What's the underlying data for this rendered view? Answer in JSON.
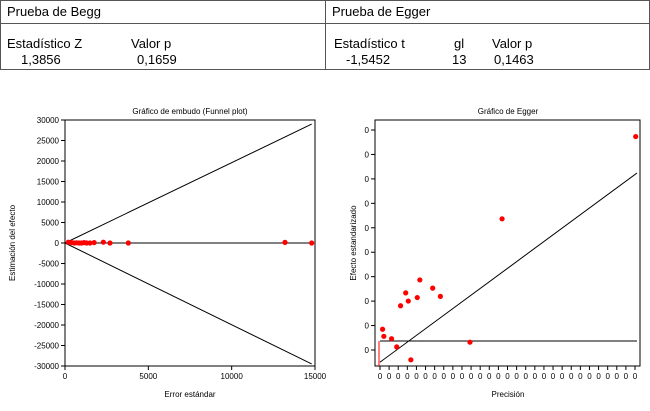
{
  "begg": {
    "title": "Prueba de Begg",
    "stat_label": "Estadístico Z",
    "p_label": "Valor p",
    "stat_value": "1,3856",
    "p_value": "0,1659"
  },
  "egger": {
    "title": "Prueba de Egger",
    "stat_label": "Estadístico t",
    "gl_label": "gl",
    "p_label": "Valor p",
    "stat_value": "-1,5452",
    "gl_value": "13",
    "p_value": "0,1463"
  },
  "chart_data": [
    {
      "type": "scatter",
      "title": "Gráfico de embudo (Funnel plot)",
      "xlabel": "Error estándar",
      "ylabel": "Estimación del efecto",
      "xlim": [
        0,
        15000
      ],
      "ylim": [
        -30000,
        30000
      ],
      "xticks": [
        0,
        5000,
        10000,
        15000
      ],
      "xtick_labels": [
        "0",
        "5000",
        "10000",
        "15000"
      ],
      "yticks": [
        30000,
        25000,
        20000,
        15000,
        10000,
        5000,
        0,
        -5000,
        -10000,
        -15000,
        -20000,
        -25000,
        -30000
      ],
      "ytick_labels": [
        "30000",
        "25000",
        "20000",
        "15000",
        "10000",
        "5000",
        "0",
        "-5000",
        "-10000",
        "-15000",
        "-20000",
        "-25000",
        "-30000"
      ],
      "points": {
        "x": [
          200,
          400,
          550,
          700,
          850,
          1000,
          1150,
          1300,
          1500,
          1750,
          2300,
          2700,
          3800,
          13200,
          14800
        ],
        "y": [
          200,
          100,
          0,
          50,
          0,
          0,
          100,
          0,
          0,
          100,
          200,
          0,
          0,
          150,
          0
        ]
      },
      "lines": [
        {
          "x": [
            0,
            14800
          ],
          "y": [
            0,
            29000
          ]
        },
        {
          "x": [
            0,
            14800
          ],
          "y": [
            0,
            -29500
          ]
        },
        {
          "x": [
            0,
            14800
          ],
          "y": [
            0,
            0
          ]
        }
      ],
      "point_color": "#ff0000"
    },
    {
      "type": "scatter",
      "title": "Gráfico de Egger",
      "xlabel": "Precisión",
      "ylabel": "Efecto estandarizado",
      "xlim": [
        0,
        10
      ],
      "ylim": [
        0,
        10
      ],
      "xtick_count": 29,
      "ytick_count": 10,
      "tick_label": "0",
      "points": {
        "x": [
          0.1,
          0.15,
          0.45,
          0.65,
          0.8,
          1.0,
          1.1,
          1.2,
          1.45,
          1.55,
          2.05,
          2.35,
          3.5,
          4.75,
          9.95
        ],
        "y": [
          1.35,
          1.05,
          0.95,
          0.6,
          2.35,
          2.9,
          2.55,
          0.05,
          2.7,
          3.45,
          3.1,
          2.75,
          0.8,
          6.05,
          9.55
        ]
      },
      "lines": [
        {
          "x": [
            0,
            10
          ],
          "y": [
            -0.05,
            8.0
          ]
        },
        {
          "x": [
            0,
            10
          ],
          "y": [
            0.85,
            0.85
          ]
        }
      ],
      "point_color": "#ff0000"
    }
  ]
}
